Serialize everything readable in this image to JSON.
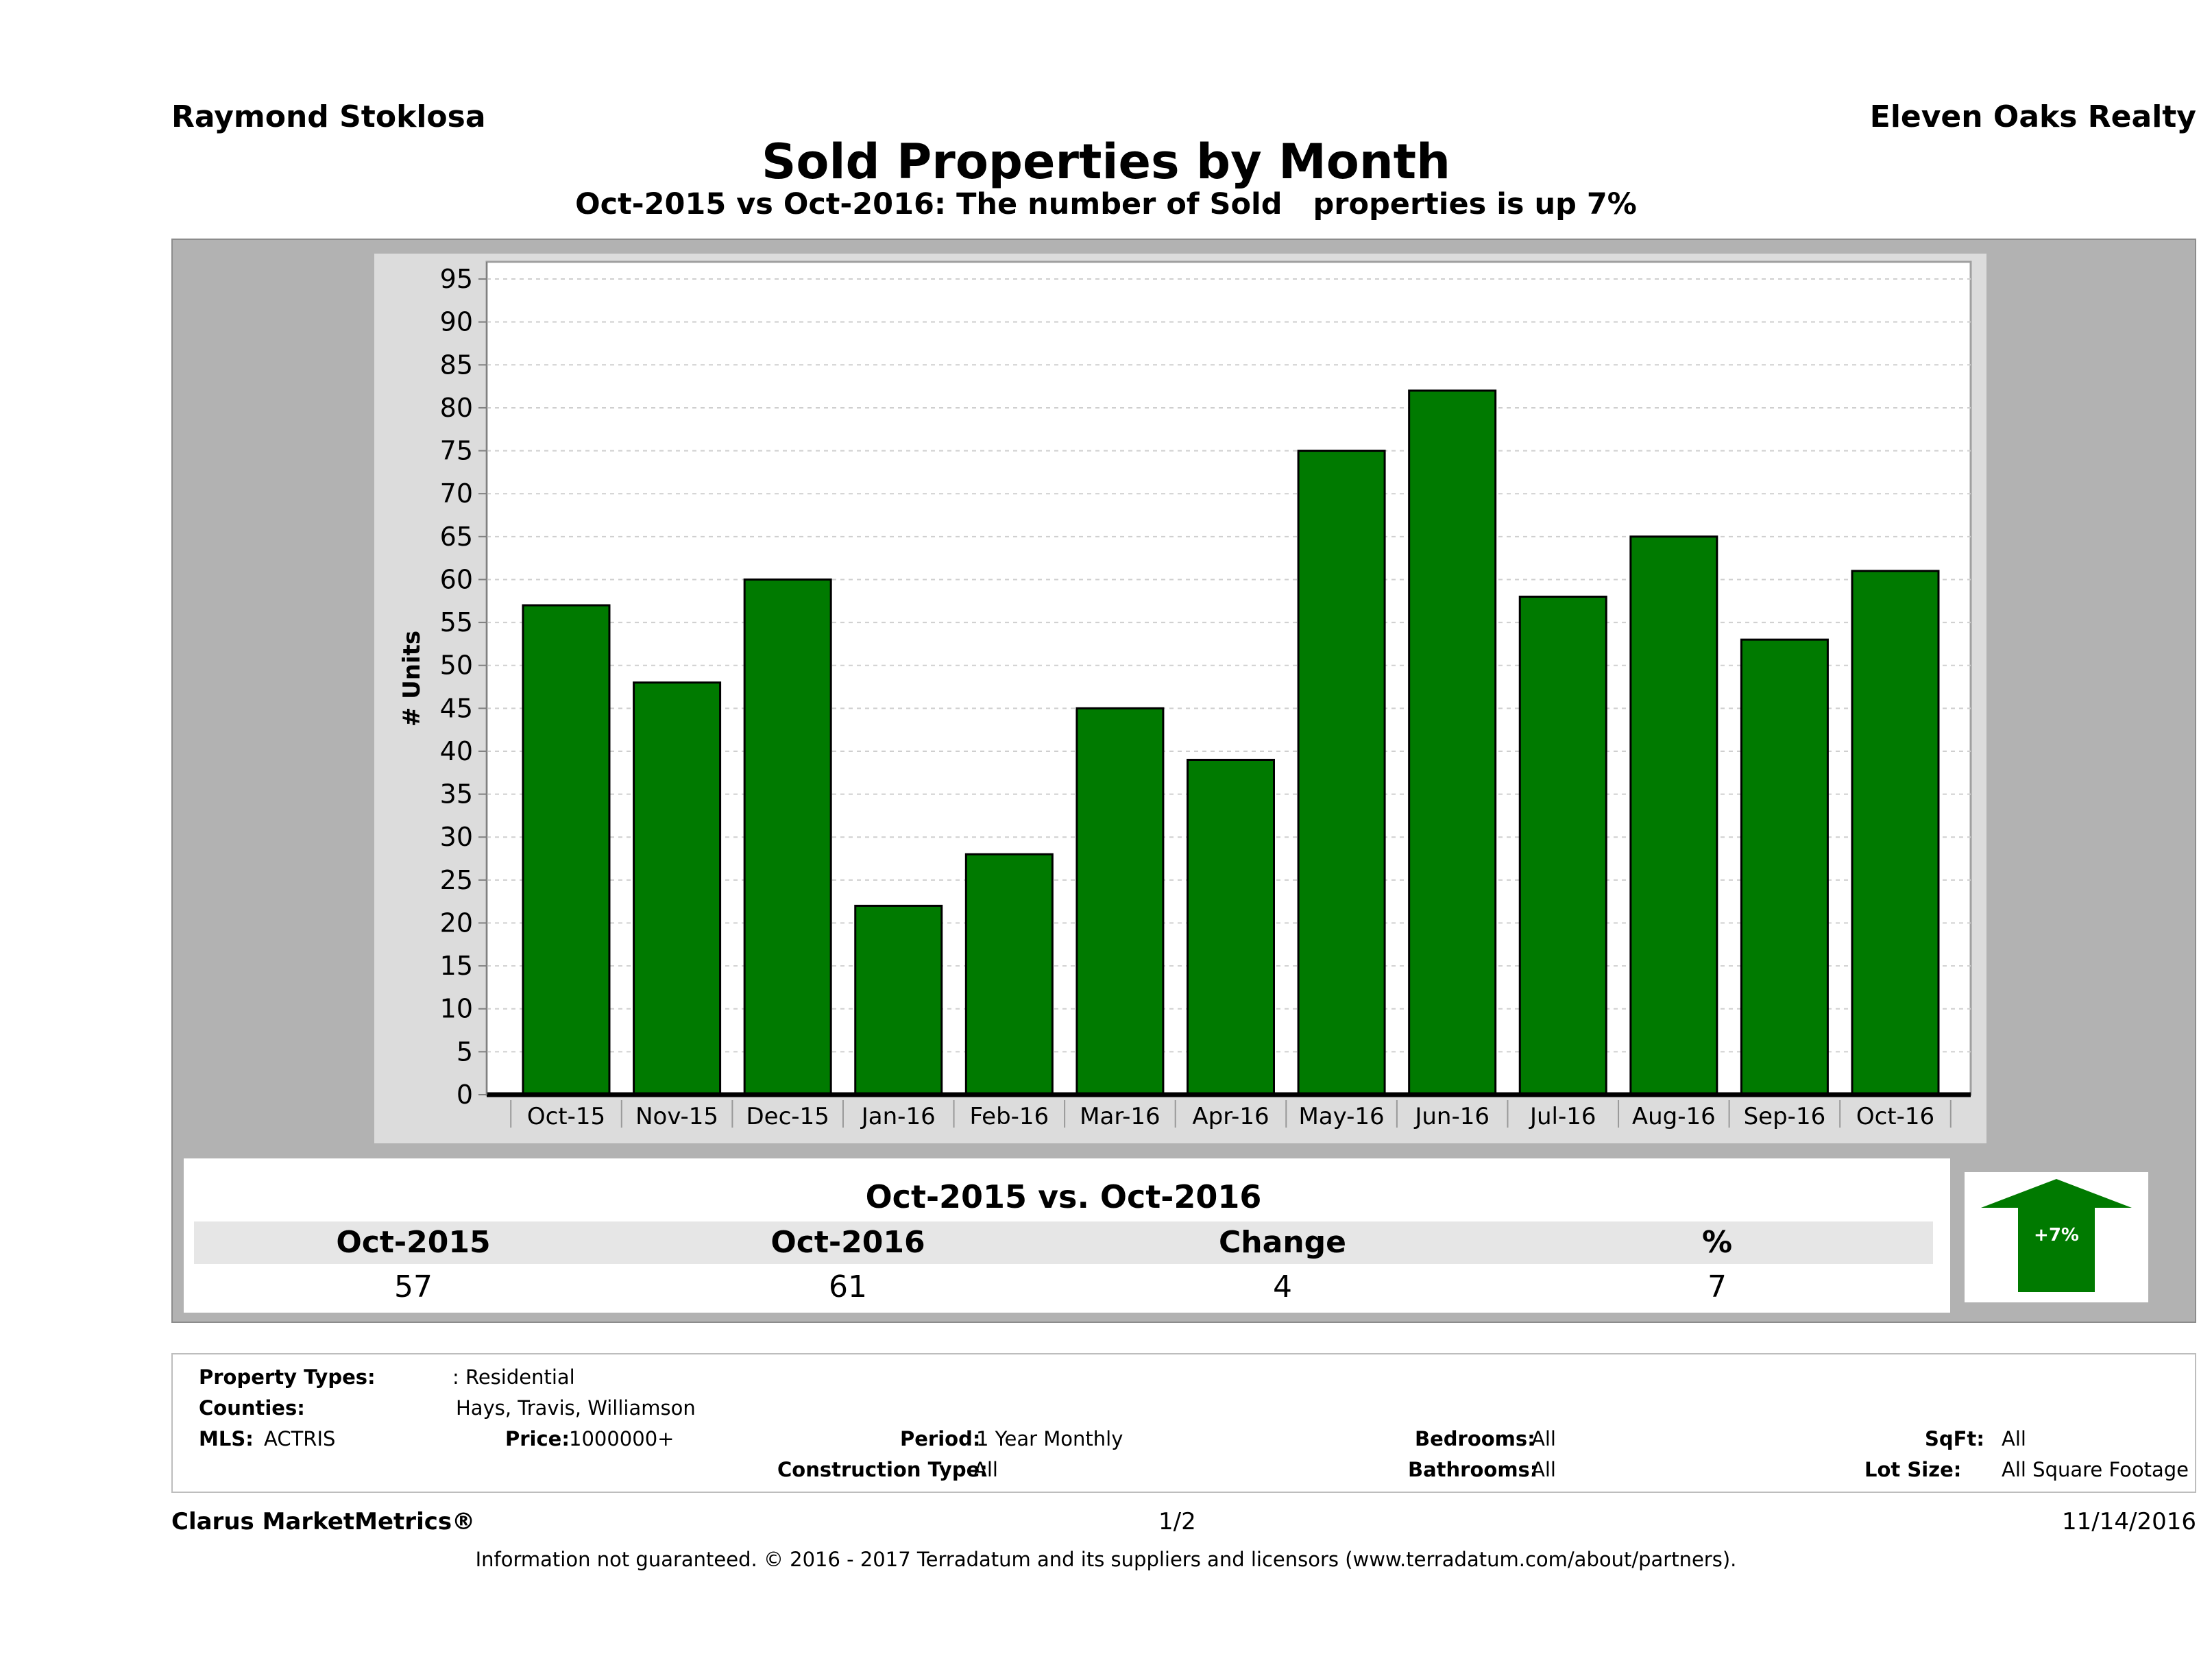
{
  "header": {
    "agent": "Raymond Stoklosa",
    "company": "Eleven Oaks Realty"
  },
  "chart_data": {
    "type": "bar",
    "title": "Sold Properties by Month",
    "subtitle": "Oct-2015 vs Oct-2016: The number of Sold   properties is up 7%",
    "ylabel": "# Units",
    "xlabel": "",
    "categories": [
      "Oct-15",
      "Nov-15",
      "Dec-15",
      "Jan-16",
      "Feb-16",
      "Mar-16",
      "Apr-16",
      "May-16",
      "Jun-16",
      "Jul-16",
      "Aug-16",
      "Sep-16",
      "Oct-16"
    ],
    "values": [
      57,
      48,
      60,
      22,
      28,
      45,
      39,
      75,
      82,
      58,
      65,
      53,
      61
    ],
    "ylim": [
      0,
      97
    ],
    "yticks": [
      0,
      5,
      10,
      15,
      20,
      25,
      30,
      35,
      40,
      45,
      50,
      55,
      60,
      65,
      70,
      75,
      80,
      85,
      90,
      95
    ],
    "grid": true,
    "bar_color": "#007a00"
  },
  "comparison": {
    "title": "Oct-2015 vs. Oct-2016",
    "headers": [
      "Oct-2015",
      "Oct-2016",
      "Change",
      "%"
    ],
    "values": [
      "57",
      "61",
      "4",
      "7"
    ],
    "badge": "+7%",
    "arrow_color": "#007a00"
  },
  "criteria": {
    "property_types_label": "Property Types:",
    "property_types_value": ": Residential",
    "counties_label": "Counties:",
    "counties_value": "Hays, Travis, Williamson",
    "mls_label": "MLS:",
    "mls_value": "ACTRIS",
    "price_label": "Price:",
    "price_value": "1000000+",
    "period_label": "Period:",
    "period_value": "1 Year Monthly",
    "construction_label": "Construction Type:",
    "construction_value": "All",
    "bedrooms_label": "Bedrooms:",
    "bedrooms_value": "All",
    "bathrooms_label": "Bathrooms:",
    "bathrooms_value": "All",
    "sqft_label": "SqFt:",
    "sqft_value": "All",
    "lotsize_label": "Lot Size:",
    "lotsize_value": "All Square Footage"
  },
  "footer": {
    "brand": "Clarus MarketMetrics®",
    "page": "1/2",
    "date": "11/14/2016",
    "disclaimer": "Information not guaranteed. © 2016 - 2017 Terradatum and its suppliers and licensors (www.terradatum.com/about/partners)."
  }
}
